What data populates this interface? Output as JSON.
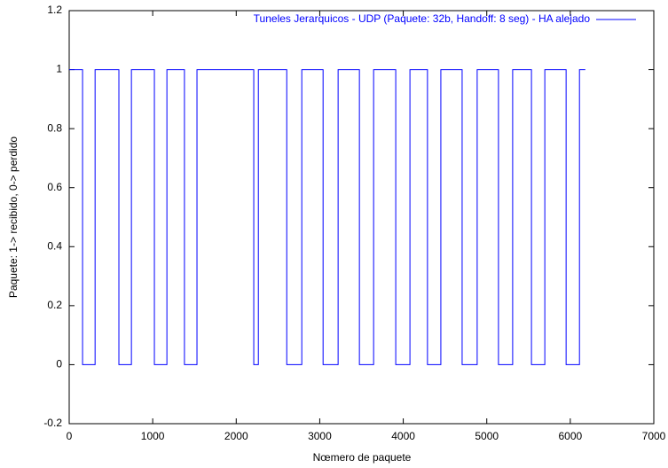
{
  "chart_data": {
    "type": "line",
    "xlabel": "Nœmero de paquete",
    "ylabel": "Paquete: 1-> recibido, 0-> perdido",
    "x": [
      0,
      160,
      160,
      310,
      310,
      595,
      595,
      745,
      745,
      1020,
      1020,
      1170,
      1170,
      1380,
      1380,
      1530,
      1530,
      2210,
      2210,
      2265,
      2265,
      2605,
      2605,
      2785,
      2785,
      3040,
      3040,
      3220,
      3220,
      3475,
      3475,
      3645,
      3645,
      3910,
      3910,
      4080,
      4080,
      4290,
      4290,
      4450,
      4450,
      4705,
      4705,
      4885,
      4885,
      5140,
      5140,
      5310,
      5310,
      5535,
      5535,
      5695,
      5695,
      5950,
      5950,
      6110,
      6110,
      6180
    ],
    "series": [
      {
        "name": "Tuneles Jerarquicos - UDP (Paquete: 32b, Handoff: 8 seg) - HA alejado",
        "color": "#0000ff",
        "values": [
          1,
          1,
          0,
          0,
          1,
          1,
          0,
          0,
          1,
          1,
          0,
          0,
          1,
          1,
          0,
          0,
          1,
          1,
          0,
          0,
          1,
          1,
          0,
          0,
          1,
          1,
          0,
          0,
          1,
          1,
          0,
          0,
          1,
          1,
          0,
          0,
          1,
          1,
          0,
          0,
          1,
          1,
          0,
          0,
          1,
          1,
          0,
          0,
          1,
          1,
          0,
          0,
          1,
          1,
          0,
          0,
          1,
          1
        ]
      }
    ],
    "xlim": [
      0,
      7000
    ],
    "ylim": [
      -0.2,
      1.2
    ],
    "xticks": [
      0,
      1000,
      2000,
      3000,
      4000,
      5000,
      6000,
      7000
    ],
    "yticks": [
      -0.2,
      0,
      0.2,
      0.4,
      0.6,
      0.8,
      1,
      1.2
    ],
    "legend": "top-right"
  }
}
